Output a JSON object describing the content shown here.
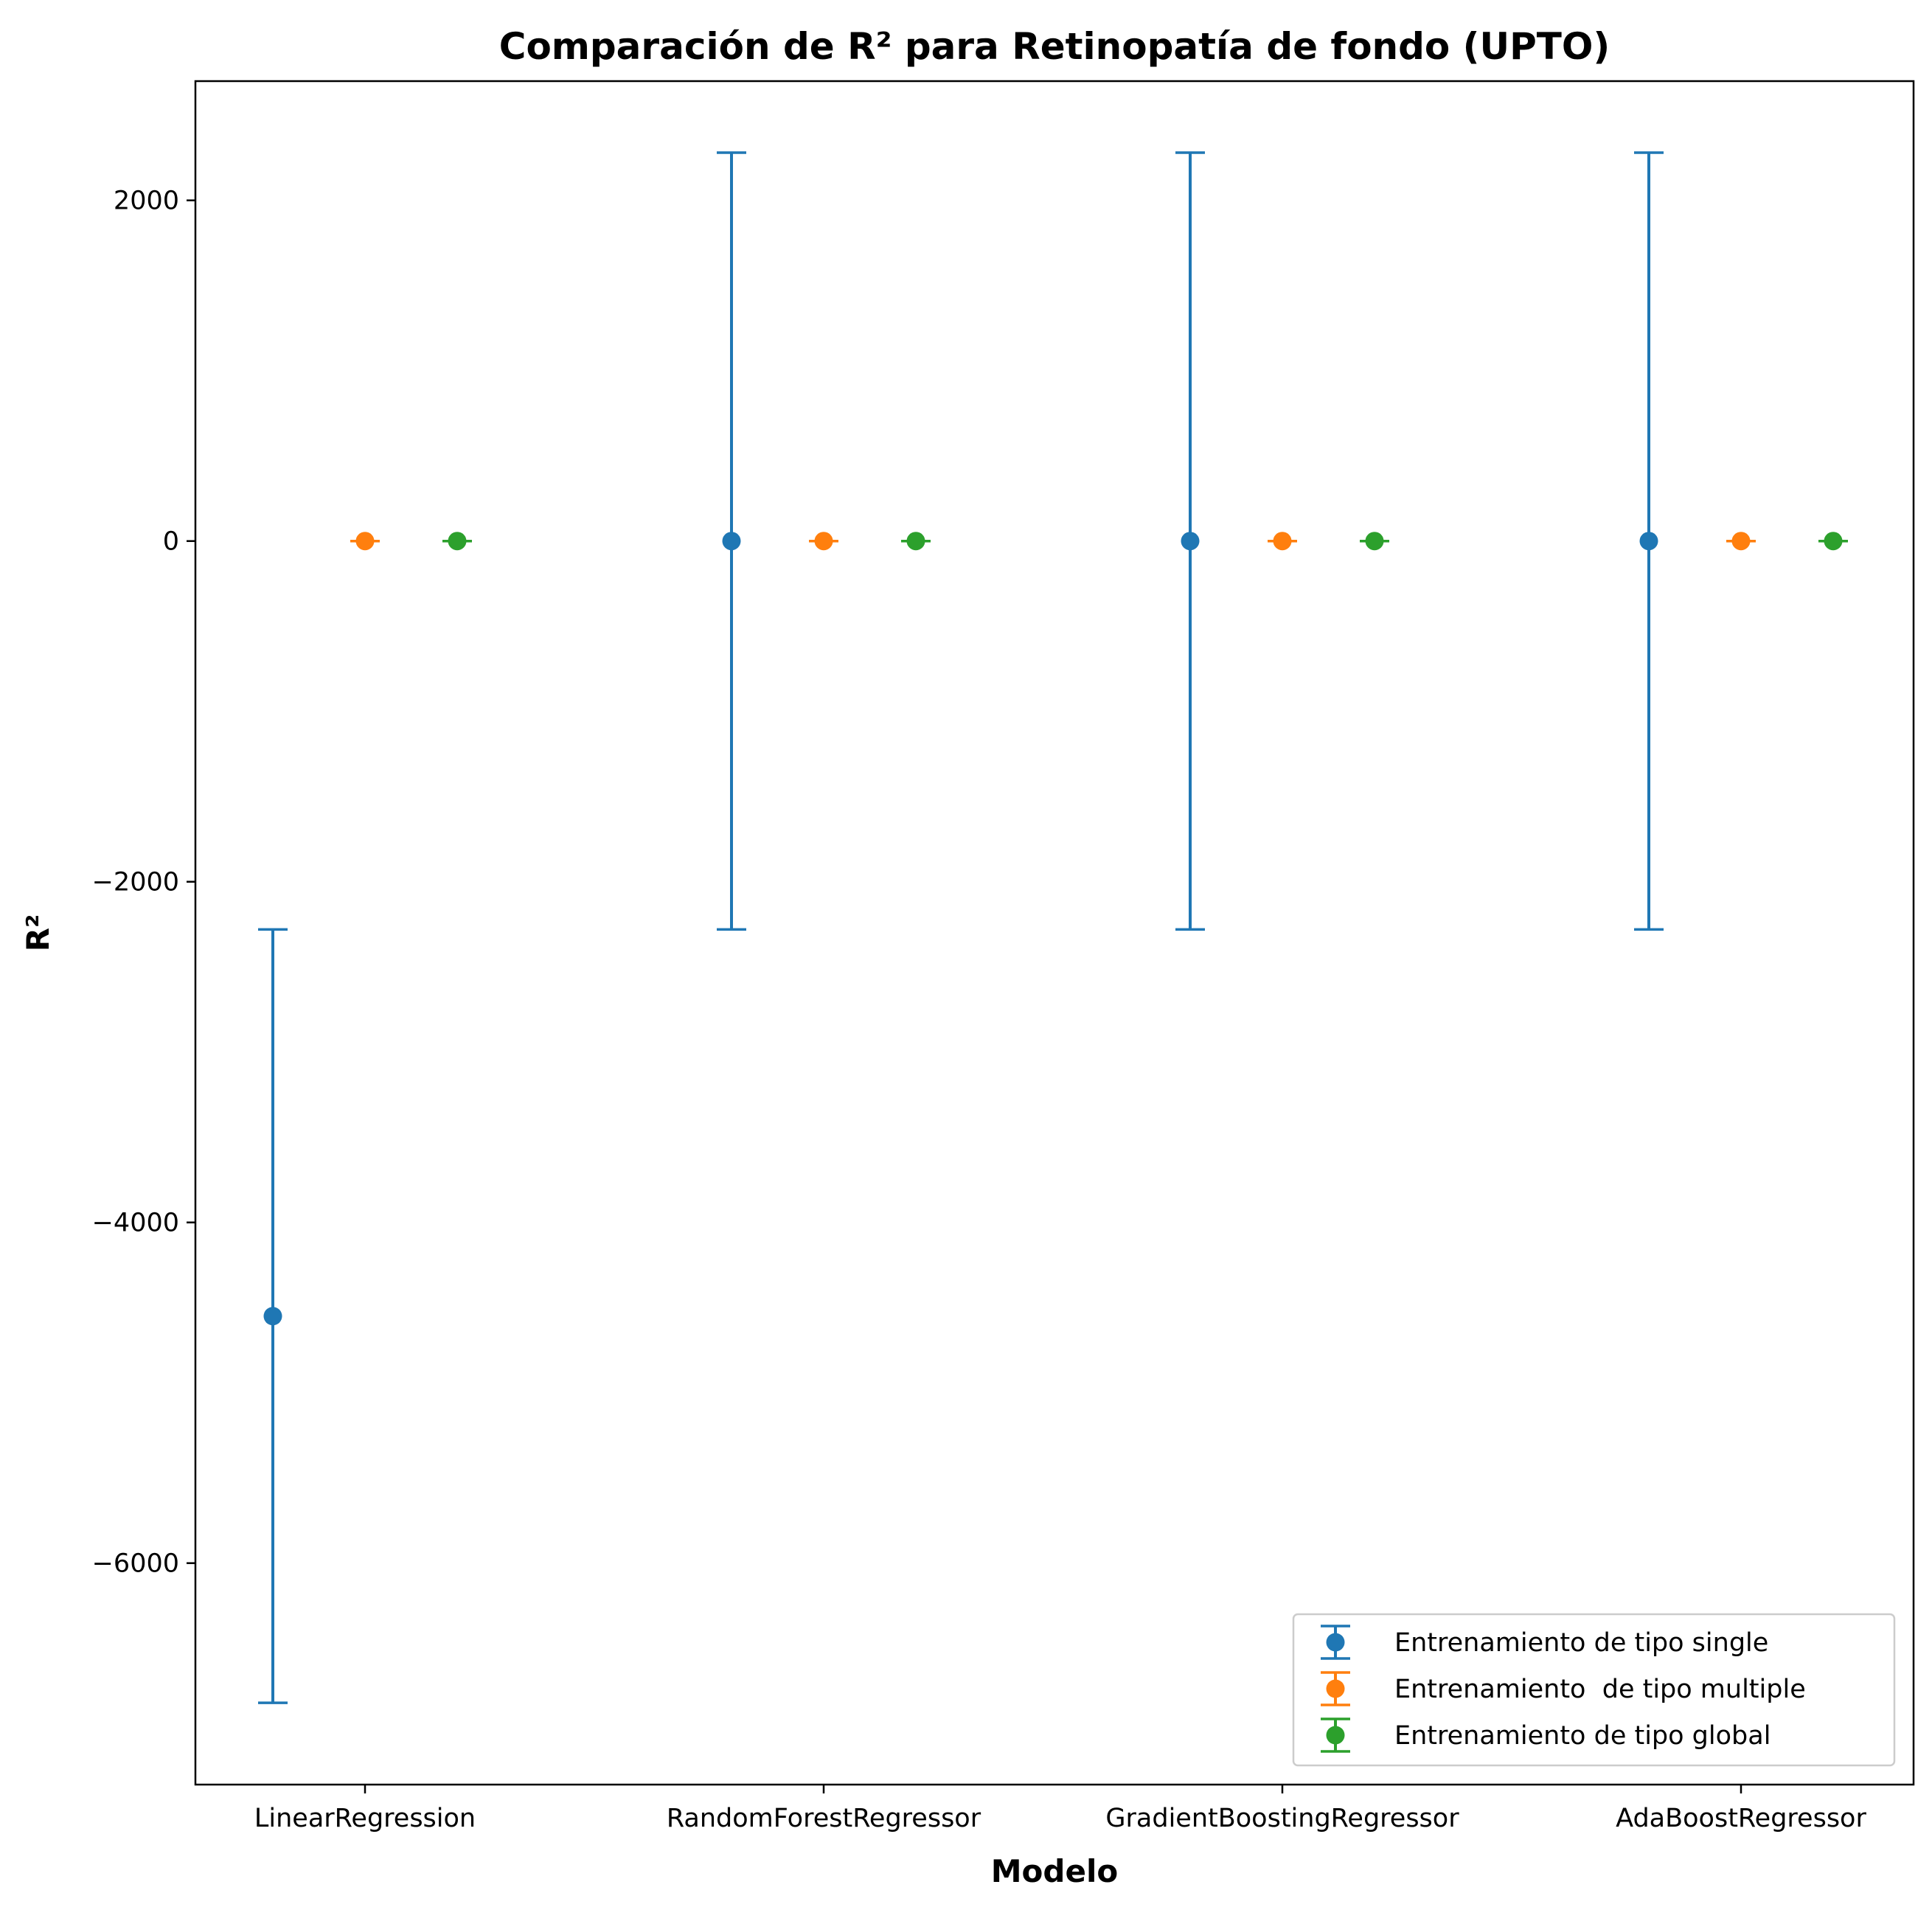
{
  "chart_data": {
    "type": "scatter",
    "title": "Comparación de R² para Retinopatía de fondo (UPTO)",
    "xlabel": "Modelo",
    "ylabel": "R²",
    "categories": [
      "LinearRegression",
      "RandomForestRegressor",
      "GradientBoostingRegressor",
      "AdaBoostRegressor"
    ],
    "ylim": [
      -7300,
      2700
    ],
    "yticks": [
      2000,
      0,
      -2000,
      -4000,
      -6000
    ],
    "ytick_labels": [
      "2000",
      "0",
      "−2000",
      "−4000",
      "−6000"
    ],
    "grid": false,
    "legend_position": "lower-right",
    "series": [
      {
        "name": "Entrenamiento de tipo single",
        "color": "#1f77b4",
        "values": [
          -4550,
          0,
          0,
          0
        ],
        "errors": [
          2270,
          2280,
          2280,
          2280
        ]
      },
      {
        "name": "Entrenamiento  de tipo multiple",
        "color": "#ff7f0e",
        "values": [
          0,
          0,
          0,
          0
        ],
        "errors": [
          0,
          0,
          0,
          0
        ]
      },
      {
        "name": "Entrenamiento de tipo global",
        "color": "#2ca02c",
        "values": [
          0,
          0,
          0,
          0
        ],
        "errors": [
          0,
          0,
          0,
          0
        ]
      }
    ]
  }
}
